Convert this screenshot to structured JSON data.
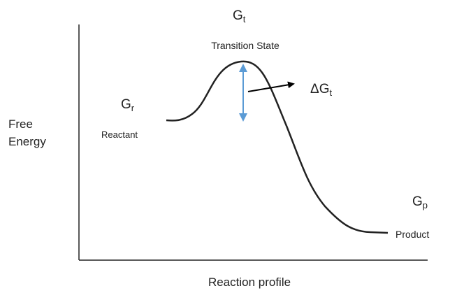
{
  "y_axis_label": [
    "Free",
    "Energy"
  ],
  "x_axis_label": "Reaction profile",
  "labels": {
    "transition_energy": {
      "main": "G",
      "sub": "t"
    },
    "transition_state": "Transition State",
    "reactant_energy": {
      "main": "G",
      "sub": "r"
    },
    "reactant": "Reactant",
    "activation_energy": {
      "main": "ΔG",
      "sub": "t"
    },
    "product_energy": {
      "main": "G",
      "sub": "p"
    },
    "product": "Product"
  }
}
